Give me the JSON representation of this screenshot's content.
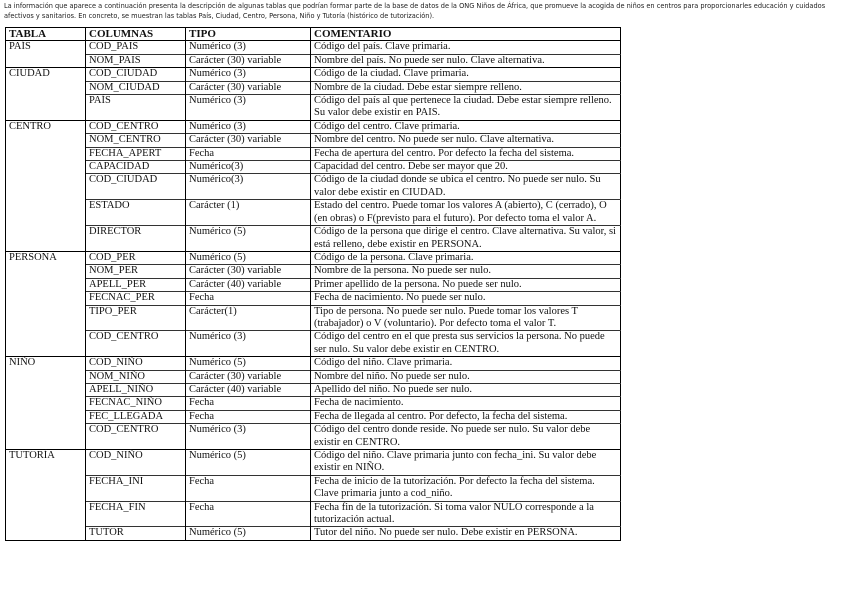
{
  "intro": "La información que aparece a continuación presenta la descripción de algunas tablas que podrían formar parte de la base de datos de la ONG Niños de África, que promueve la acogida de niños en centros para proporcionarles educación y cuidados afectivos y sanitarios. En concreto, se muestran las tablas País, Ciudad, Centro, Persona, Niño y Tutoría (histórico de tutorización).",
  "table": {
    "headers": [
      "TABLA",
      "COLUMNAS",
      "TIPO",
      "COMENTARIO"
    ],
    "groups": [
      {
        "tabla": "PAÍS",
        "rows": [
          [
            "COD_PAIS",
            "Numérico (3)",
            "Código del país. Clave primaria."
          ],
          [
            "NOM_PAIS",
            "Carácter (30) variable",
            "Nombre del país. No puede ser nulo. Clave alternativa."
          ]
        ]
      },
      {
        "tabla": "CIUDAD",
        "rows": [
          [
            "COD_CIUDAD",
            "Numérico (3)",
            "Código de la ciudad. Clave primaria."
          ],
          [
            "NOM_CIUDAD",
            "Carácter (30) variable",
            "Nombre de la ciudad. Debe estar siempre relleno."
          ],
          [
            "PAÍS",
            "Numérico (3)",
            "Código del país al que pertenece la ciudad. Debe estar siempre relleno. Su valor debe existir en PAIS."
          ]
        ]
      },
      {
        "tabla": "CENTRO",
        "rows": [
          [
            "COD_CENTRO",
            "Numérico (3)",
            "Código del centro. Clave primaria."
          ],
          [
            "NOM_CENTRO",
            "Carácter (30) variable",
            "Nombre del centro. No puede ser nulo. Clave alternativa."
          ],
          [
            "FECHA_APERT",
            "Fecha",
            "Fecha de apertura del centro. Por defecto la fecha del sistema."
          ],
          [
            "CAPACIDAD",
            "Numérico(3)",
            "Capacidad del centro. Debe ser mayor que 20."
          ],
          [
            "COD_CIUDAD",
            "Numérico(3)",
            "Código de la ciudad donde se ubica el centro. No puede ser nulo. Su valor debe existir en CIUDAD."
          ],
          [
            "ESTADO",
            "Carácter (1)",
            "Estado del centro. Puede tomar los valores A (abierto), C (cerrado), O (en obras) o F(previsto para el futuro). Por defecto toma el valor A."
          ],
          [
            "DIRECTOR",
            "Numérico (5)",
            "Código de la persona que dirige el centro. Clave alternativa. Su valor, si está relleno, debe existir en PERSONA."
          ]
        ]
      },
      {
        "tabla": "PERSONA",
        "rows": [
          [
            "COD_PER",
            "Numérico (5)",
            "Código de la persona. Clave primaria."
          ],
          [
            "NOM_PER",
            "Carácter (30) variable",
            "Nombre de la persona. No puede ser nulo."
          ],
          [
            "APELL_PER",
            "Carácter (40) variable",
            "Primer apellido de la persona. No puede ser nulo."
          ],
          [
            "FECNAC_PER",
            "Fecha",
            "Fecha de nacimiento. No puede ser nulo."
          ],
          [
            "TIPO_PER",
            "Carácter(1)",
            "Tipo de persona. No puede ser nulo. Puede tomar los valores T (trabajador) o V (voluntario). Por defecto toma el valor T."
          ],
          [
            "COD_CENTRO",
            "Numérico (3)",
            "Código del centro en el que presta sus servicios la persona. No puede ser nulo. Su valor debe existir en CENTRO."
          ]
        ]
      },
      {
        "tabla": "NIÑO",
        "rows": [
          [
            "COD_NIÑO",
            "Numérico (5)",
            "Código del niño. Clave primaria."
          ],
          [
            "NOM_NIÑO",
            "Carácter (30) variable",
            "Nombre del niño. No puede ser nulo."
          ],
          [
            "APELL_NIÑO",
            "Carácter (40) variable",
            "Apellido del niño. No puede ser nulo."
          ],
          [
            "FECNAC_NIÑO",
            "Fecha",
            "Fecha de nacimiento."
          ],
          [
            "FEC_LLEGADA",
            "Fecha",
            "Fecha de llegada al centro. Por defecto, la fecha del sistema."
          ],
          [
            "COD_CENTRO",
            "Numérico (3)",
            "Código del centro donde reside. No puede ser nulo. Su valor debe existir en CENTRO."
          ]
        ]
      },
      {
        "tabla": "TUTORÍA",
        "rows": [
          [
            "COD_NIÑO",
            "Numérico (5)",
            "Código del niño. Clave primaria junto con fecha_ini. Su valor debe existir en NIÑO."
          ],
          [
            "FECHA_INI",
            "Fecha",
            "Fecha de inicio de la tutorización. Por defecto la fecha del sistema. Clave primaria junto a cod_niño."
          ],
          [
            "FECHA_FIN",
            "Fecha",
            "Fecha fin de la tutorización. Si toma valor NULO corresponde a la tutorización actual."
          ],
          [
            "TUTOR",
            "Numérico (5)",
            "Tutor del niño. No puede ser nulo. Debe existir en PERSONA."
          ]
        ]
      }
    ]
  }
}
